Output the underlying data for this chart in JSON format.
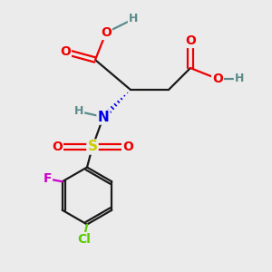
{
  "bg_color": "#ebebeb",
  "atom_colors": {
    "C": "#1a1a1a",
    "H": "#5a8a8a",
    "O": "#ee0000",
    "N": "#0000ee",
    "S": "#cccc00",
    "F": "#cc00cc",
    "Cl": "#55cc00"
  },
  "bond_color": "#1a1a1a",
  "bond_lw": 1.6,
  "font_size_atom": 9,
  "font_size_label": 10
}
